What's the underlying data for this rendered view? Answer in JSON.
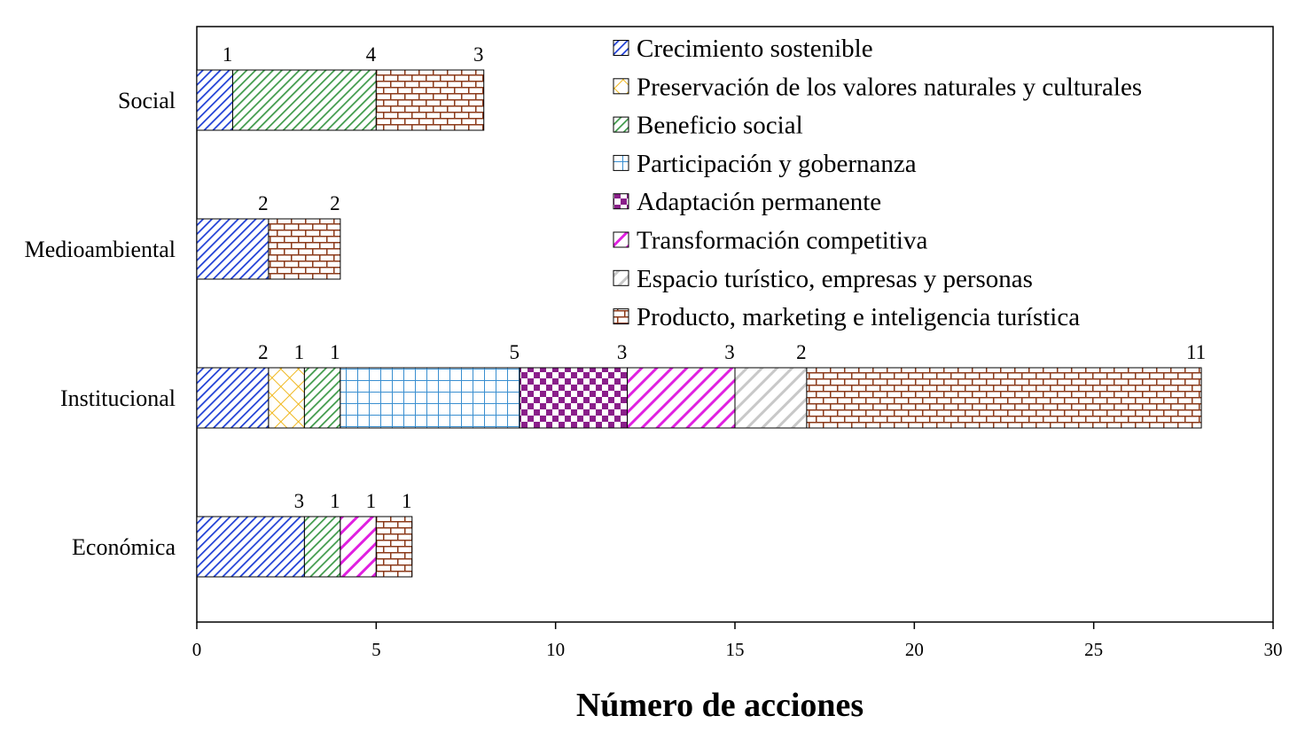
{
  "chart_data": {
    "type": "bar",
    "orientation": "horizontal",
    "stacked": true,
    "title": "",
    "xlabel": "Número de acciones",
    "ylabel": "",
    "xlim": [
      0,
      30
    ],
    "xticks": [
      0,
      5,
      10,
      15,
      20,
      25,
      30
    ],
    "grid": false,
    "legend_position": "top-right",
    "categories": [
      "Social",
      "Medioambiental",
      "Institucional",
      "Económica"
    ],
    "series": [
      {
        "name": "Crecimiento sostenible",
        "color": "#1f3fd6",
        "pattern": "diag-dense",
        "values": [
          1,
          2,
          2,
          3
        ]
      },
      {
        "name": "Preservación de los valores naturales y culturales",
        "color": "#f0b820",
        "pattern": "crosshatch",
        "values": [
          0,
          0,
          1,
          0
        ]
      },
      {
        "name": "Beneficio social",
        "color": "#3f9a4a",
        "pattern": "diag-dense",
        "values": [
          4,
          0,
          1,
          1
        ]
      },
      {
        "name": "Participación y gobernanza",
        "color": "#3a8fd0",
        "pattern": "grid",
        "values": [
          0,
          0,
          5,
          0
        ]
      },
      {
        "name": "Adaptación permanente",
        "color": "#8a1e8a",
        "pattern": "checker",
        "values": [
          0,
          0,
          3,
          0
        ]
      },
      {
        "name": "Transformación competitiva",
        "color": "#e020e0",
        "pattern": "diag-wide",
        "values": [
          0,
          0,
          3,
          1
        ]
      },
      {
        "name": "Espacio turístico, empresas y personas",
        "color": "#c8c8c8",
        "pattern": "diag-wide",
        "values": [
          0,
          0,
          2,
          0
        ]
      },
      {
        "name": "Producto, marketing e inteligencia turística",
        "color": "#8b3a1a",
        "pattern": "brick",
        "values": [
          3,
          2,
          11,
          1
        ]
      }
    ]
  }
}
